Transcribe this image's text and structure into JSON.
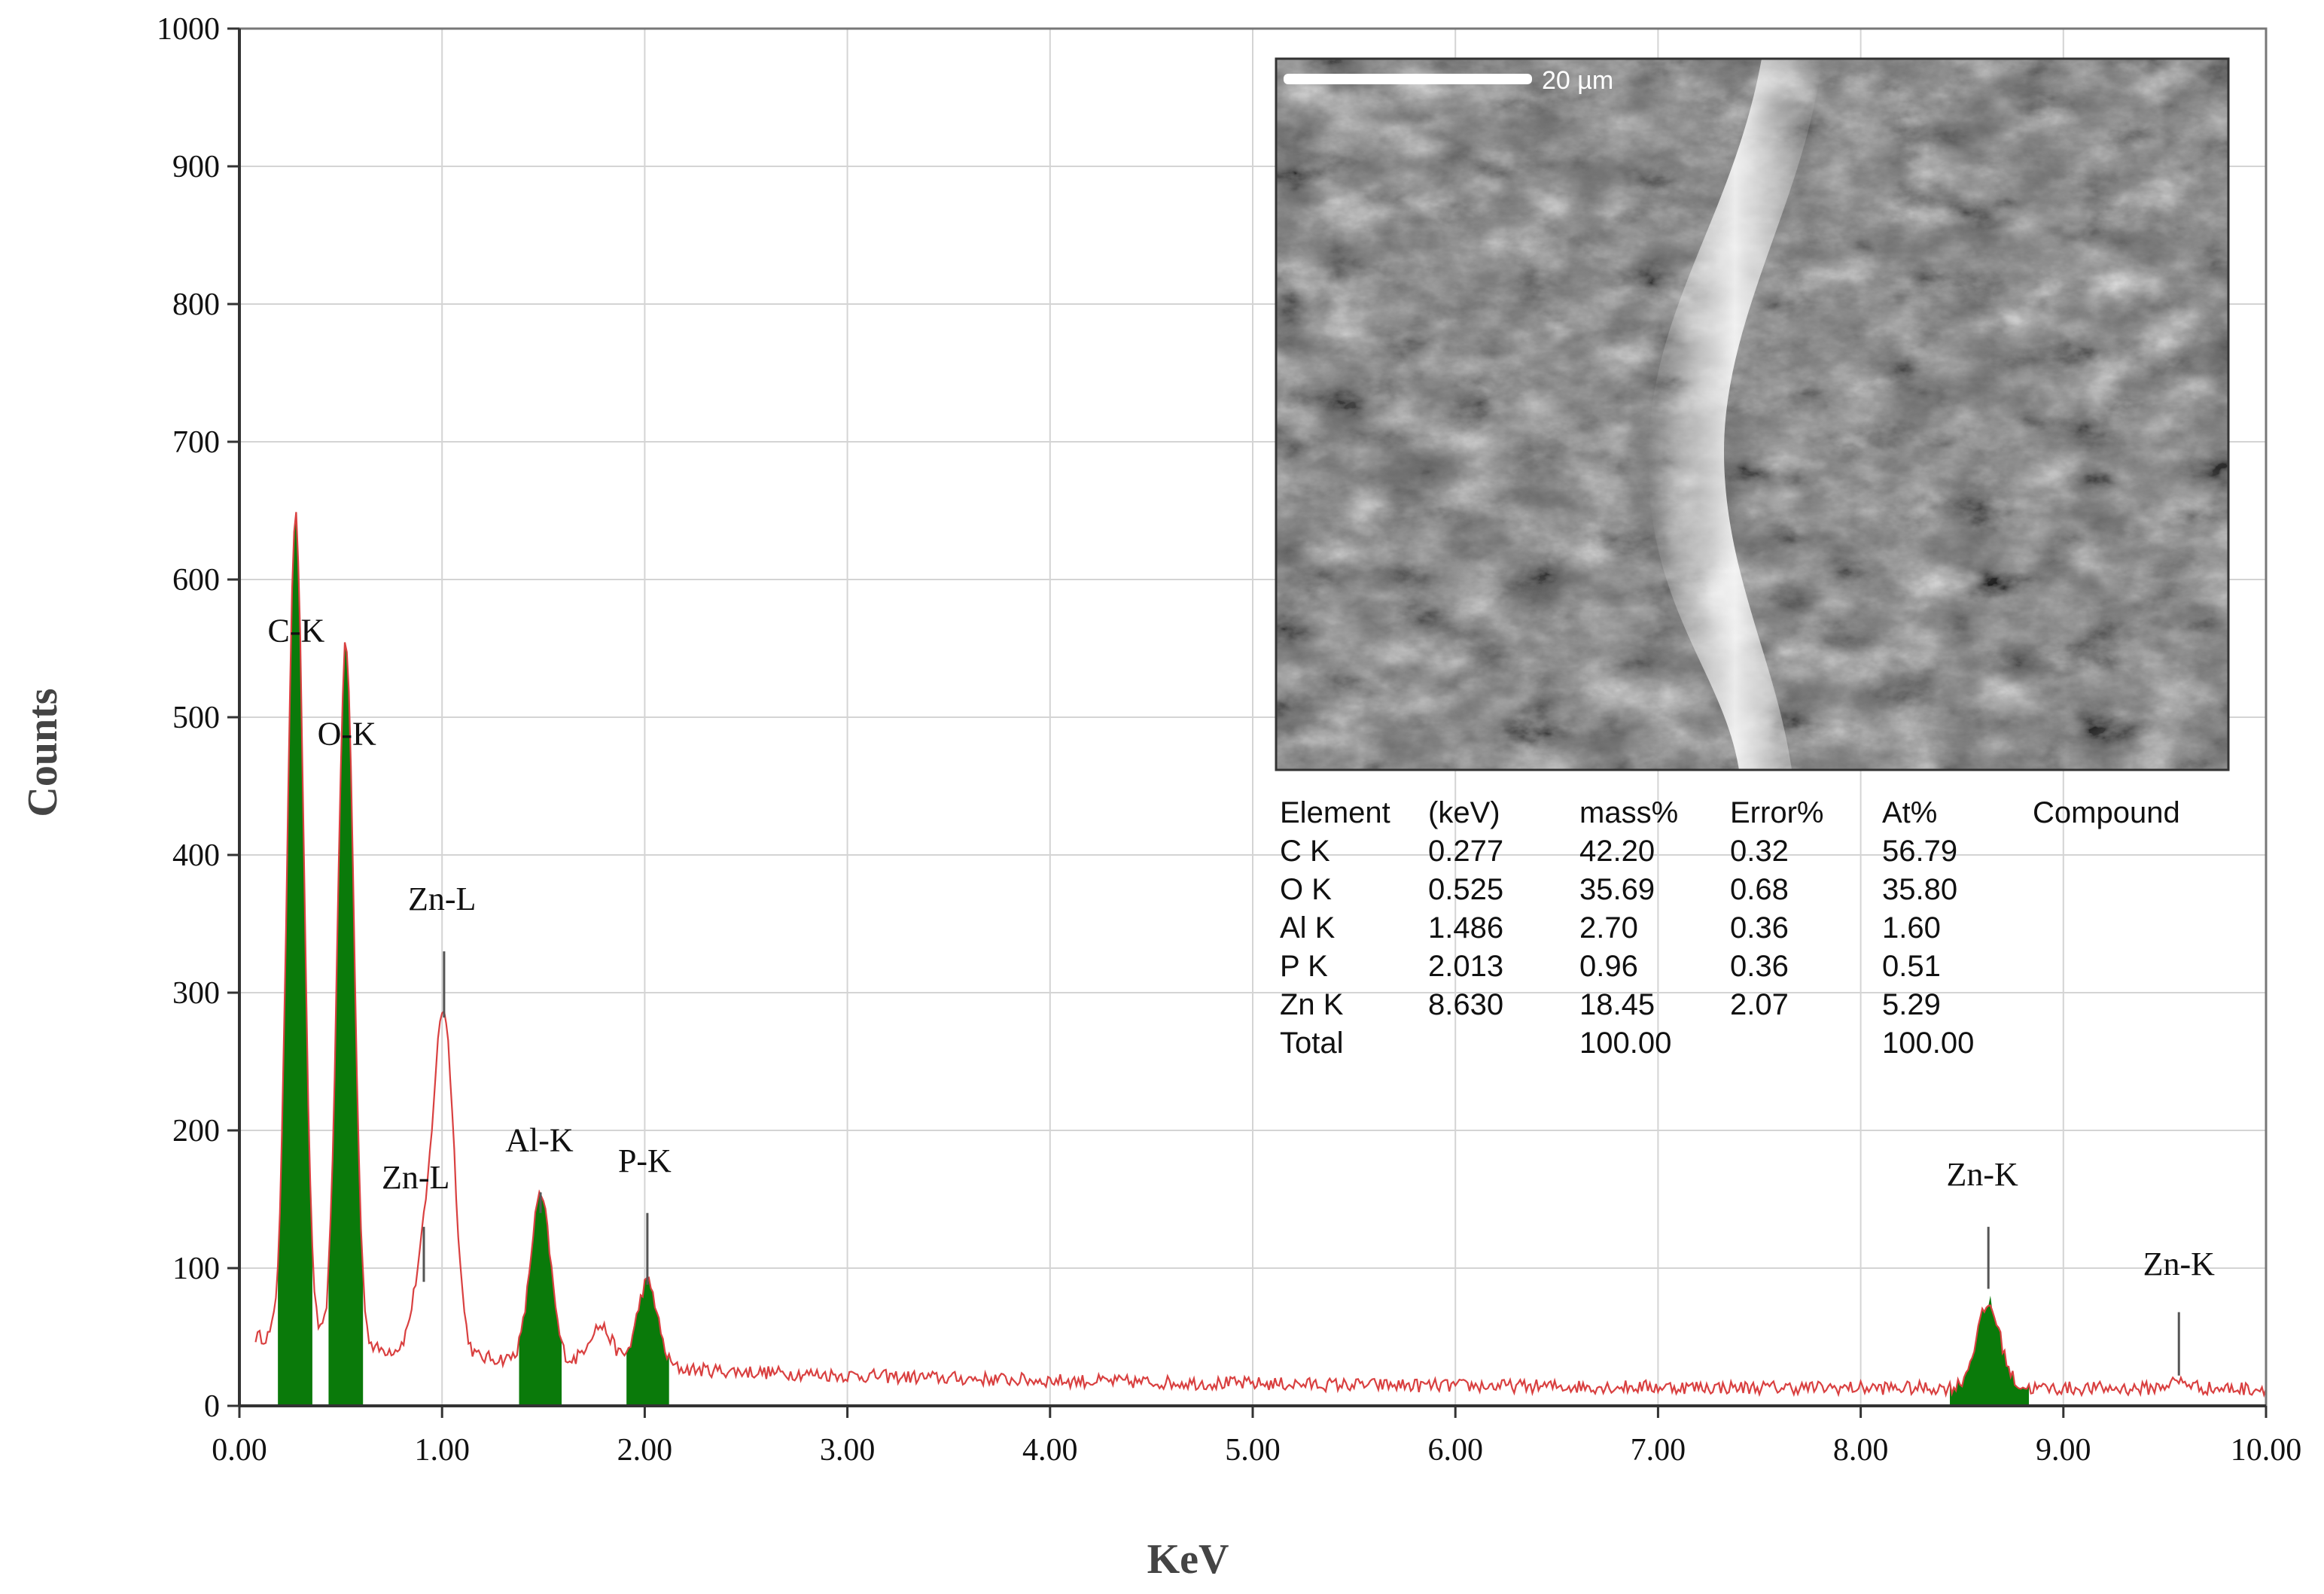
{
  "chart_data": {
    "type": "area",
    "title": "",
    "xlabel": "KeV",
    "ylabel": "Counts",
    "xlim": [
      0,
      10
    ],
    "ylim": [
      0,
      1000
    ],
    "x_ticks": [
      "0.00",
      "1.00",
      "2.00",
      "3.00",
      "4.00",
      "5.00",
      "6.00",
      "7.00",
      "8.00",
      "9.00",
      "10.00"
    ],
    "y_ticks": [
      "0",
      "100",
      "200",
      "300",
      "400",
      "500",
      "600",
      "700",
      "800",
      "900",
      "1000"
    ],
    "grid": true,
    "colors": {
      "spectrum": "#d94040",
      "peak_fill": "#0a7a0a",
      "grid": "#d4d4d4"
    },
    "peaks": [
      {
        "label": "C-K",
        "energy": 0.277,
        "counts": 620,
        "fill": true,
        "label_x": 0.28,
        "label_y": 555
      },
      {
        "label": "O-K",
        "energy": 0.525,
        "counts": 530,
        "fill": true,
        "label_x": 0.53,
        "label_y": 480
      },
      {
        "label": "Zn-L",
        "energy": 1.01,
        "counts": 262,
        "fill": false,
        "marker_top": 330,
        "marker_bottom": 282,
        "label_x": 1.0,
        "label_y": 360
      },
      {
        "label": "Zn-L",
        "energy": 0.91,
        "counts": 85,
        "fill": false,
        "marker_top": 130,
        "marker_bottom": 90,
        "label_x": 0.87,
        "label_y": 158
      },
      {
        "label": "Al-K",
        "energy": 1.486,
        "counts": 140,
        "fill": true,
        "marker_top": 155,
        "marker_bottom": 140,
        "label_x": 1.48,
        "label_y": 185
      },
      {
        "label": "P-K",
        "energy": 2.013,
        "counts": 82,
        "fill": true,
        "marker_top": 140,
        "marker_bottom": 88,
        "label_x": 2.0,
        "label_y": 170
      },
      {
        "label": "Zn-K",
        "energy": 8.63,
        "counts": 80,
        "fill": true,
        "marker_top": 130,
        "marker_bottom": 85,
        "label_x": 8.6,
        "label_y": 160
      },
      {
        "label": "Zn-K",
        "energy": 9.57,
        "counts": 14,
        "fill": false,
        "marker_top": 68,
        "marker_bottom": 22,
        "label_x": 9.57,
        "label_y": 95
      }
    ],
    "inset_table": {
      "headers": [
        "Element",
        "(keV)",
        "mass%",
        "Error%",
        "At%",
        "Compound"
      ],
      "rows": [
        [
          "C  K",
          "0.277",
          "42.20",
          "0.32",
          "56.79",
          ""
        ],
        [
          "O  K",
          "0.525",
          "35.69",
          "0.68",
          "35.80",
          ""
        ],
        [
          "Al K",
          "1.486",
          "2.70",
          "0.36",
          "1.60",
          ""
        ],
        [
          "P  K",
          "2.013",
          "0.96",
          "0.36",
          "0.51",
          ""
        ],
        [
          "Zn K",
          "8.630",
          "18.45",
          "2.07",
          "5.29",
          ""
        ],
        [
          "Total",
          "",
          "100.00",
          "",
          "100.00",
          ""
        ]
      ]
    },
    "sem_image": {
      "scale_bar_label": "20 µm"
    }
  }
}
